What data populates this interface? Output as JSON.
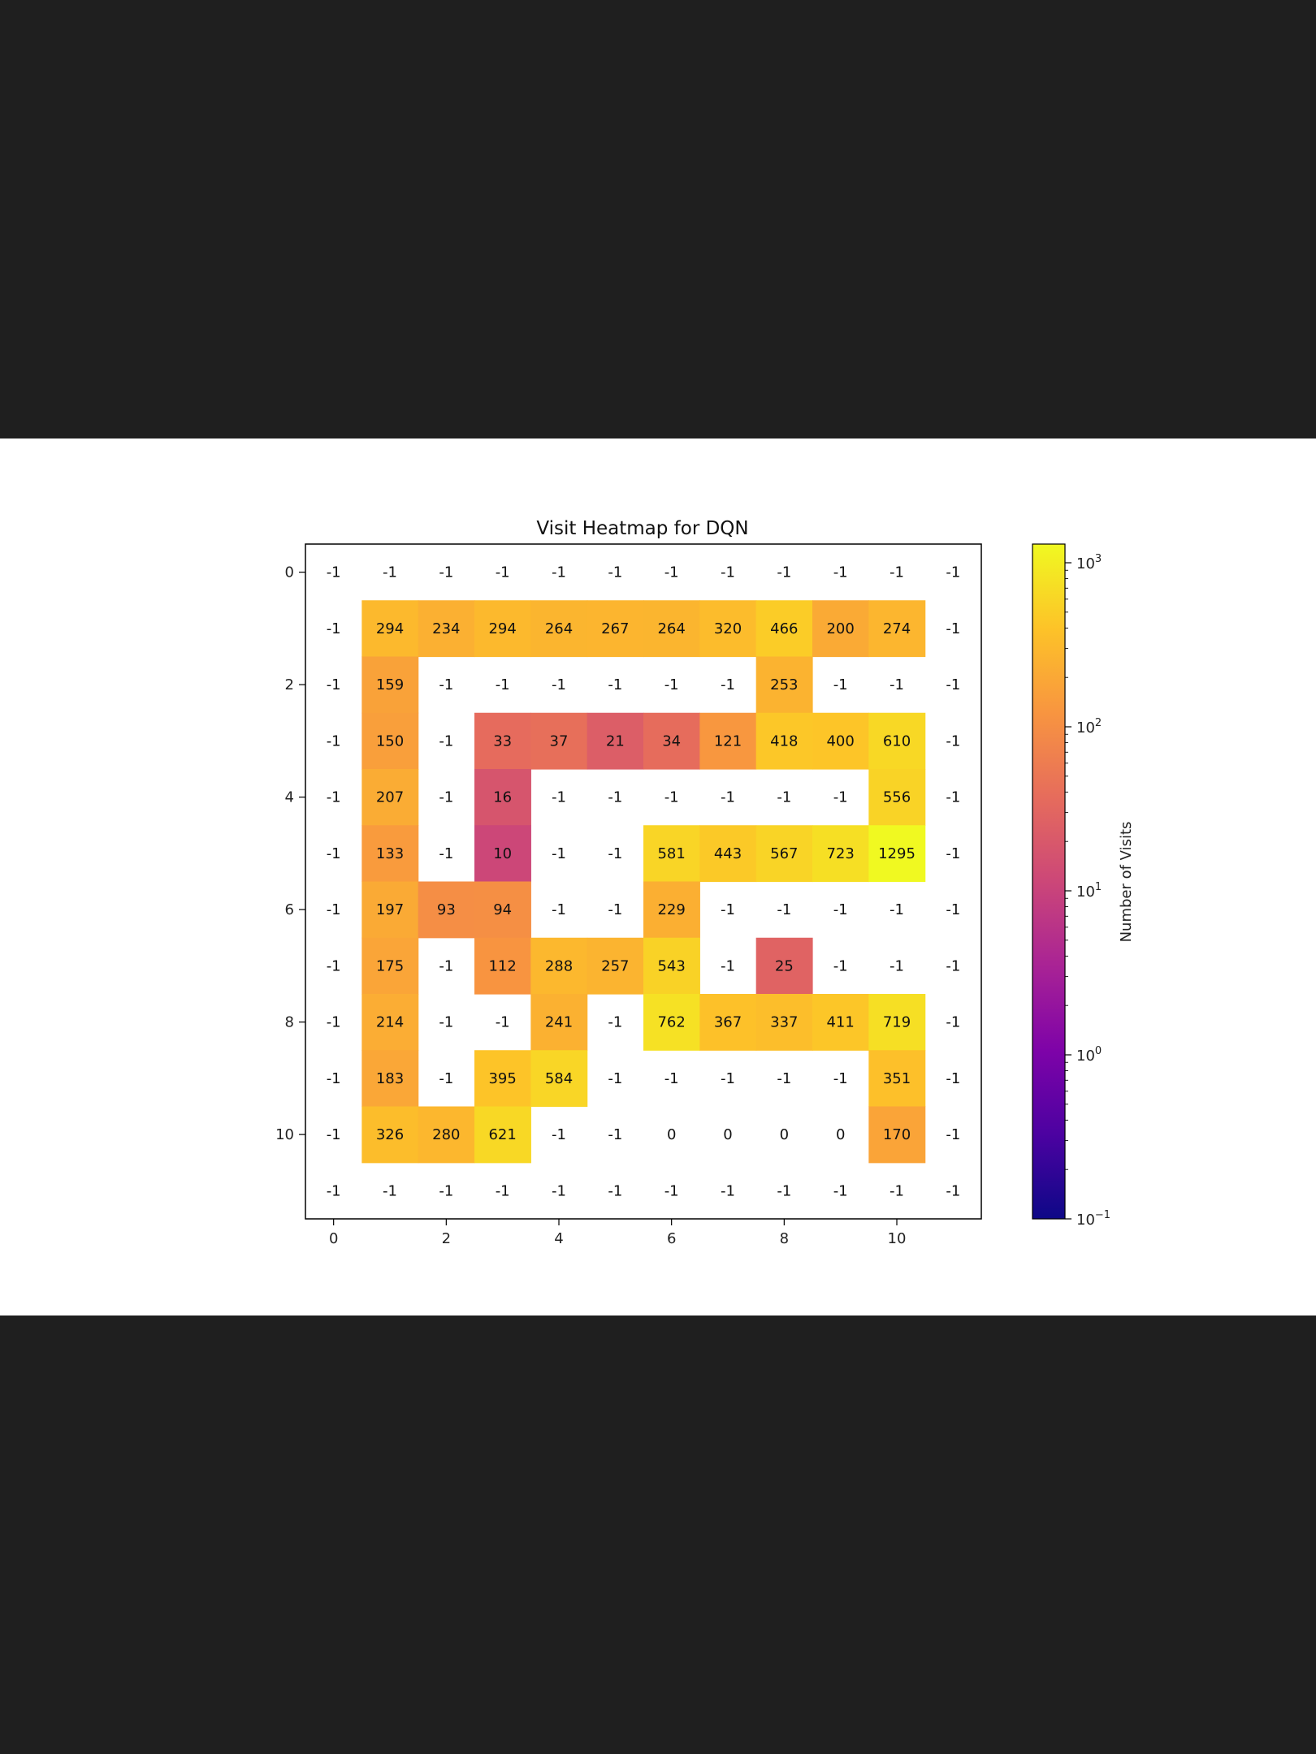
{
  "chart_data": {
    "type": "heatmap",
    "title": "Visit Heatmap for DQN",
    "xlabel": "",
    "ylabel": "",
    "colorbar_label": "Number of Visits",
    "colormap": "plasma",
    "scale": "log",
    "colorbar_range": [
      0.1,
      1000
    ],
    "colorbar_ticks": [
      {
        "base": "10",
        "exp": "3",
        "value": 1000
      },
      {
        "base": "10",
        "exp": "2",
        "value": 100
      },
      {
        "base": "10",
        "exp": "1",
        "value": 10
      },
      {
        "base": "10",
        "exp": "0",
        "value": 1
      },
      {
        "base": "10",
        "exp": "−1",
        "value": 0.1
      }
    ],
    "x_ticks": [
      0,
      2,
      4,
      6,
      8,
      10
    ],
    "y_ticks": [
      0,
      2,
      4,
      6,
      8,
      10
    ],
    "grid": false,
    "values": [
      [
        -1,
        -1,
        -1,
        -1,
        -1,
        -1,
        -1,
        -1,
        -1,
        -1,
        -1,
        -1
      ],
      [
        -1,
        294,
        234,
        294,
        264,
        267,
        264,
        320,
        466,
        200,
        274,
        -1
      ],
      [
        -1,
        159,
        -1,
        -1,
        -1,
        -1,
        -1,
        -1,
        253,
        -1,
        -1,
        -1
      ],
      [
        -1,
        150,
        -1,
        33,
        37,
        21,
        34,
        121,
        418,
        400,
        610,
        -1
      ],
      [
        -1,
        207,
        -1,
        16,
        -1,
        -1,
        -1,
        -1,
        -1,
        -1,
        556,
        -1
      ],
      [
        -1,
        133,
        -1,
        10,
        -1,
        -1,
        581,
        443,
        567,
        723,
        1295,
        -1
      ],
      [
        -1,
        197,
        93,
        94,
        -1,
        -1,
        229,
        -1,
        -1,
        -1,
        -1,
        -1
      ],
      [
        -1,
        175,
        -1,
        112,
        288,
        257,
        543,
        -1,
        25,
        -1,
        -1,
        -1
      ],
      [
        -1,
        214,
        -1,
        -1,
        241,
        -1,
        762,
        367,
        337,
        411,
        719,
        -1
      ],
      [
        -1,
        183,
        -1,
        395,
        584,
        -1,
        -1,
        -1,
        -1,
        -1,
        351,
        -1
      ],
      [
        -1,
        326,
        280,
        621,
        -1,
        -1,
        0,
        0,
        0,
        0,
        170,
        -1
      ],
      [
        -1,
        -1,
        -1,
        -1,
        -1,
        -1,
        -1,
        -1,
        -1,
        -1,
        -1,
        -1
      ]
    ]
  }
}
